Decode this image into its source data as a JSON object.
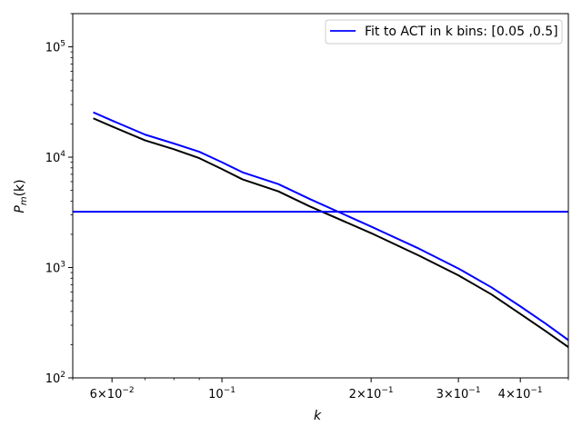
{
  "chart_data": {
    "type": "line",
    "xscale": "log",
    "yscale": "log",
    "xlim": [
      0.05,
      0.5
    ],
    "ylim": [
      100,
      200000
    ],
    "xlabel": "k",
    "ylabel_main": "P",
    "ylabel_sub": "m",
    "ylabel_arg": "(k)",
    "grid": false,
    "legend_position": "upper-right",
    "colors": {
      "black_series": "#000000",
      "blue_series": "#0000ff"
    },
    "x_ticks": [
      {
        "value": 0.06,
        "mant": "6",
        "base": "×10",
        "exp": "−2"
      },
      {
        "value": 0.1,
        "mant": "",
        "base": "10",
        "exp": "−1"
      },
      {
        "value": 0.2,
        "mant": "2",
        "base": "×10",
        "exp": "−1"
      },
      {
        "value": 0.3,
        "mant": "3",
        "base": "×10",
        "exp": "−1"
      },
      {
        "value": 0.4,
        "mant": "4",
        "base": "×10",
        "exp": "−1"
      }
    ],
    "y_ticks": [
      {
        "value": 100,
        "base": "10",
        "exp": "2"
      },
      {
        "value": 1000,
        "base": "10",
        "exp": "3"
      },
      {
        "value": 10000,
        "base": "10",
        "exp": "4"
      },
      {
        "value": 100000,
        "base": "10",
        "exp": "5"
      }
    ],
    "series": [
      {
        "color": "#000000",
        "x": [
          0.055,
          0.06,
          0.07,
          0.08,
          0.09,
          0.1,
          0.11,
          0.13,
          0.15,
          0.2,
          0.25,
          0.3,
          0.35,
          0.4,
          0.45,
          0.5
        ],
        "y": [
          22500,
          19000,
          14200,
          11800,
          9800,
          7800,
          6300,
          4900,
          3600,
          2050,
          1280,
          850,
          570,
          380,
          265,
          190
        ]
      },
      {
        "color": "#0000ff",
        "x": [
          0.055,
          0.06,
          0.07,
          0.08,
          0.09,
          0.1,
          0.11,
          0.13,
          0.15,
          0.2,
          0.25,
          0.3,
          0.35,
          0.4,
          0.45,
          0.5
        ],
        "y": [
          25500,
          21500,
          16000,
          13300,
          11200,
          9000,
          7300,
          5700,
          4200,
          2350,
          1480,
          980,
          660,
          445,
          310,
          220
        ]
      },
      {
        "name": "Fit to ACT in k bins: [0.05 ,0.5]",
        "color": "#0000ff",
        "x": [
          0.05,
          0.5
        ],
        "y": [
          3200,
          3200
        ]
      }
    ],
    "legend": {
      "label": "Fit to ACT in k bins: [0.05 ,0.5]",
      "color": "#0000ff"
    }
  }
}
